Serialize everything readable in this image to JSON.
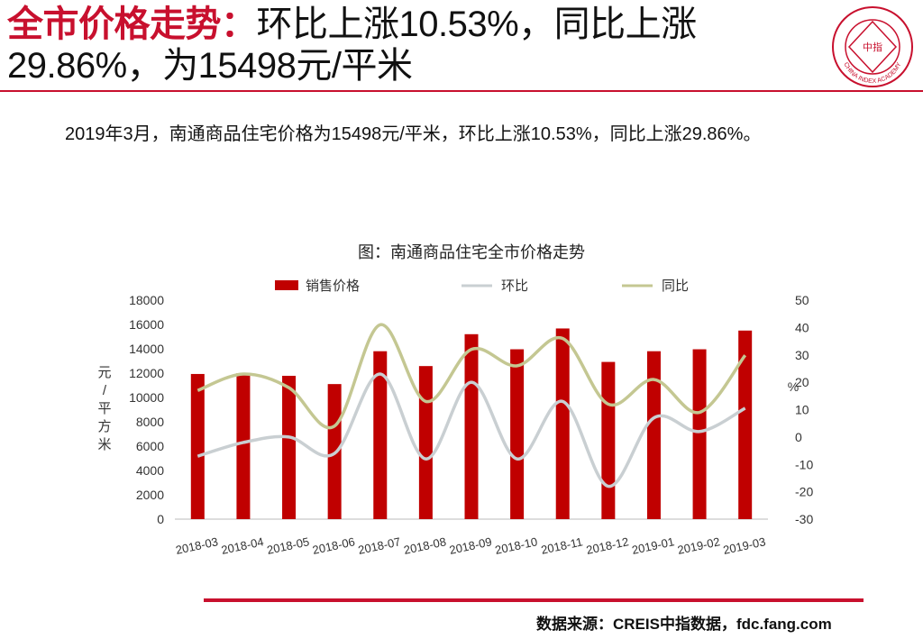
{
  "header": {
    "title_highlight": "全市价格走势：",
    "title_rest": "环比上涨10.53%，同比上涨29.86%，为15498元/平米",
    "logo_text": "中指",
    "logo_ring_text": "CHINA INDEX ACADEMY"
  },
  "summary_text": "2019年3月，南通商品住宅价格为15498元/平米，环比上涨10.53%，同比上涨29.86%。",
  "source_text": "数据来源：CREIS中指数据，fdc.fang.com",
  "colors": {
    "accent": "#c8102e",
    "bar": "#c00000",
    "mom_line": "#c9cfd2",
    "yoy_line": "#c4c792"
  },
  "chart_data": {
    "type": "bar+line",
    "title": "图：南通商品住宅全市价格走势",
    "categories": [
      "2018-03",
      "2018-04",
      "2018-05",
      "2018-06",
      "2018-07",
      "2018-08",
      "2018-09",
      "2018-10",
      "2018-11",
      "2018-12",
      "2019-01",
      "2019-02",
      "2019-03"
    ],
    "series": [
      {
        "name": "销售价格",
        "type": "bar",
        "axis": "left",
        "values": [
          11930,
          12000,
          11780,
          11100,
          13800,
          12580,
          15200,
          13960,
          15670,
          12920,
          13800,
          13960,
          15498
        ]
      },
      {
        "name": "环比",
        "type": "line",
        "axis": "right",
        "values": [
          -7,
          -2,
          0,
          -6,
          23,
          -8,
          20,
          -8,
          13,
          -18,
          7,
          2,
          10.53
        ]
      },
      {
        "name": "同比",
        "type": "line",
        "axis": "right",
        "values": [
          17,
          23,
          18,
          4,
          41,
          13,
          32,
          26,
          36,
          12,
          21,
          9,
          29.86
        ]
      }
    ],
    "y_left": {
      "label": "元/平方米",
      "min": 0,
      "max": 18000,
      "ticks": [
        0,
        2000,
        4000,
        6000,
        8000,
        10000,
        12000,
        14000,
        16000,
        18000
      ]
    },
    "y_right": {
      "label": "%",
      "min": -30,
      "max": 50,
      "ticks": [
        -30,
        -20,
        -10,
        0,
        10,
        20,
        30,
        40,
        50
      ]
    },
    "legend_position": "top"
  }
}
